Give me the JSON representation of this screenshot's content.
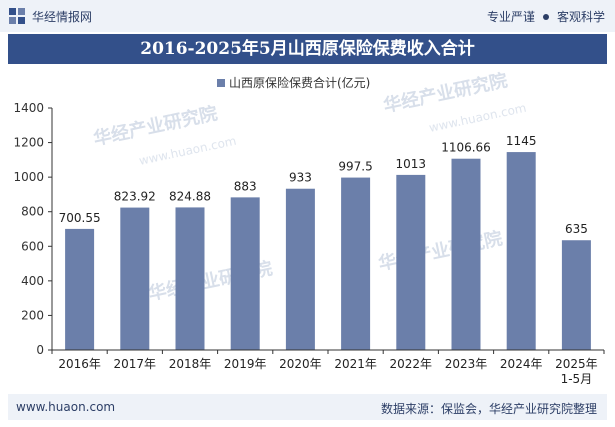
{
  "header": {
    "brand": "华经情报网",
    "tagline_left": "专业严谨",
    "tagline_right": "客观科学"
  },
  "title": "2016-2025年5月山西原保险保费收入合计",
  "footer": {
    "website": "www.huaon.com",
    "source": "数据来源：保监会，华经产业研究院整理"
  },
  "watermark": {
    "text": "华经产业研究院",
    "url": "www.huaon.com"
  },
  "colors": {
    "bar": "#6b7faa",
    "title_bg": "#33508a",
    "header_bg": "#eef2f8"
  },
  "chart_data": {
    "type": "bar",
    "title": "2016-2025年5月山西原保险保费收入合计",
    "legend_position": "top-center",
    "grid": false,
    "ylim": [
      0,
      1400
    ],
    "yticks": [
      "0",
      "200",
      "400",
      "600",
      "800",
      "1000",
      "1200",
      "1400"
    ],
    "categories": [
      "2016年",
      "2017年",
      "2018年",
      "2019年",
      "2020年",
      "2021年",
      "2022年",
      "2023年",
      "2024年",
      "2025年\n1-5月"
    ],
    "series": [
      {
        "name": "山西原保险保费合计(亿元)",
        "values": [
          700.55,
          823.92,
          824.88,
          883,
          933,
          997.5,
          1013,
          1106.66,
          1145,
          635
        ],
        "labels": [
          "700.55",
          "823.92",
          "824.88",
          "883",
          "933",
          "997.5",
          "1013",
          "1106.66",
          "1145",
          "635"
        ]
      }
    ]
  }
}
